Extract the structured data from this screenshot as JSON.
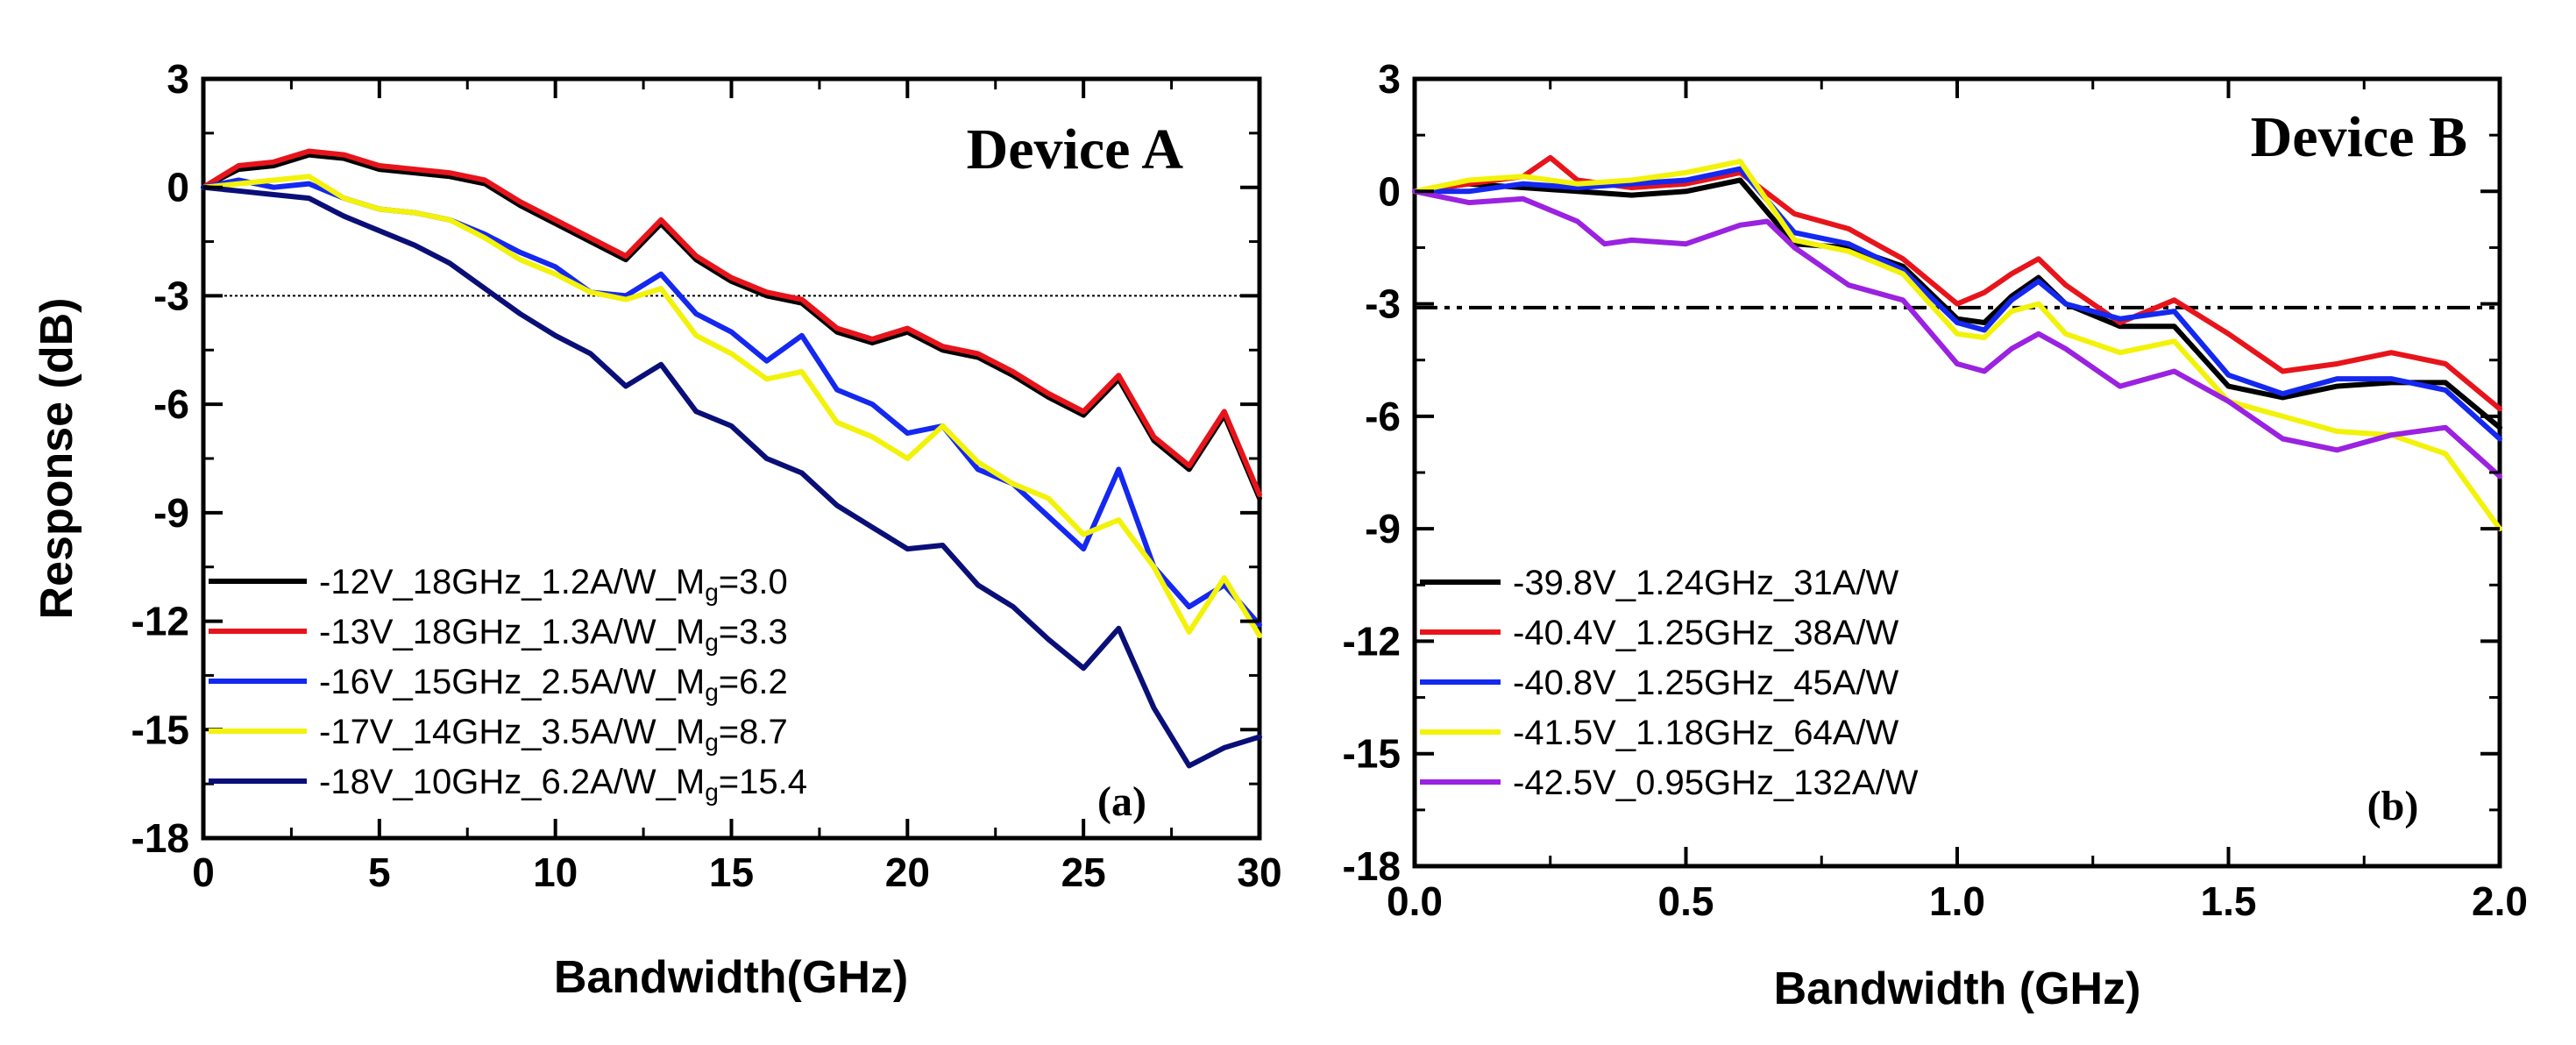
{
  "chart_data": [
    {
      "type": "line",
      "panel": "(a)",
      "title": "Device A",
      "xlabel": "Bandwidth(GHz)",
      "ylabel": "Response (dB)",
      "xlim": [
        0,
        30
      ],
      "ylim": [
        -18,
        3
      ],
      "xticks": [
        0,
        5,
        10,
        15,
        20,
        25,
        30
      ],
      "yticks": [
        3,
        0,
        -3,
        -6,
        -9,
        -12,
        -15,
        -18
      ],
      "reference_line": {
        "y": -3,
        "style": "dotted"
      },
      "legend_position": "bottom-left",
      "series": [
        {
          "name": "-12V_18GHz_1.2A/W_M",
          "name_sub": "g",
          "name_suffix": "=3.0",
          "color": "#000000",
          "x": [
            0,
            1,
            2,
            3,
            4,
            5,
            6,
            7,
            8,
            9,
            10,
            11,
            12,
            13,
            14,
            15,
            16,
            17,
            18,
            19,
            20,
            21,
            22,
            23,
            24,
            25,
            26,
            27,
            28,
            29,
            30
          ],
          "y": [
            0,
            0.5,
            0.6,
            0.9,
            0.8,
            0.5,
            0.4,
            0.3,
            0.1,
            -0.5,
            -1.0,
            -1.5,
            -2.0,
            -1.0,
            -2.0,
            -2.6,
            -3.0,
            -3.2,
            -4.0,
            -4.3,
            -4.0,
            -4.5,
            -4.7,
            -5.2,
            -5.8,
            -6.3,
            -5.3,
            -7.0,
            -7.8,
            -6.3,
            -8.6
          ]
        },
        {
          "name": "-13V_18GHz_1.3A/W_M",
          "name_sub": "g",
          "name_suffix": "=3.3",
          "color": "#e8141b",
          "x": [
            0,
            1,
            2,
            3,
            4,
            5,
            6,
            7,
            8,
            9,
            10,
            11,
            12,
            13,
            14,
            15,
            16,
            17,
            18,
            19,
            20,
            21,
            22,
            23,
            24,
            25,
            26,
            27,
            28,
            29,
            30
          ],
          "y": [
            0,
            0.6,
            0.7,
            1.0,
            0.9,
            0.6,
            0.5,
            0.4,
            0.2,
            -0.4,
            -0.9,
            -1.4,
            -1.9,
            -0.9,
            -1.9,
            -2.5,
            -2.9,
            -3.1,
            -3.9,
            -4.2,
            -3.9,
            -4.4,
            -4.6,
            -5.1,
            -5.7,
            -6.2,
            -5.2,
            -6.9,
            -7.7,
            -6.2,
            -8.5
          ]
        },
        {
          "name": "-16V_15GHz_2.5A/W_M",
          "name_sub": "g",
          "name_suffix": "=6.2",
          "color": "#1428f0",
          "x": [
            0,
            1,
            2,
            3,
            4,
            5,
            6,
            7,
            8,
            9,
            10,
            11,
            12,
            13,
            14,
            15,
            16,
            17,
            18,
            19,
            20,
            21,
            22,
            23,
            24,
            25,
            26,
            27,
            28,
            29,
            30
          ],
          "y": [
            0,
            0.2,
            0,
            0.1,
            -0.3,
            -0.6,
            -0.7,
            -0.9,
            -1.3,
            -1.8,
            -2.2,
            -2.9,
            -3.0,
            -2.4,
            -3.5,
            -4.0,
            -4.8,
            -4.1,
            -5.6,
            -6.0,
            -6.8,
            -6.6,
            -7.8,
            -8.2,
            -9.1,
            -10.0,
            -7.8,
            -10.5,
            -11.6,
            -11.0,
            -12.1
          ]
        },
        {
          "name": "-17V_14GHz_3.5A/W_M",
          "name_sub": "g",
          "name_suffix": "=8.7",
          "color": "#f2f20a",
          "x": [
            0,
            1,
            2,
            3,
            4,
            5,
            6,
            7,
            8,
            9,
            10,
            11,
            12,
            13,
            14,
            15,
            16,
            17,
            18,
            19,
            20,
            21,
            22,
            23,
            24,
            25,
            26,
            27,
            28,
            29,
            30
          ],
          "y": [
            0,
            0.1,
            0.2,
            0.3,
            -0.3,
            -0.6,
            -0.7,
            -0.9,
            -1.4,
            -2.0,
            -2.4,
            -2.9,
            -3.1,
            -2.8,
            -4.1,
            -4.6,
            -5.3,
            -5.1,
            -6.5,
            -6.9,
            -7.5,
            -6.6,
            -7.6,
            -8.2,
            -8.6,
            -9.6,
            -9.2,
            -10.5,
            -12.3,
            -10.8,
            -12.4
          ]
        },
        {
          "name": "-18V_10GHz_6.2A/W_M",
          "name_sub": "g",
          "name_suffix": "=15.4",
          "color": "#0a0f78",
          "x": [
            0,
            1,
            2,
            3,
            4,
            5,
            6,
            7,
            8,
            9,
            10,
            11,
            12,
            13,
            14,
            15,
            16,
            17,
            18,
            19,
            20,
            21,
            22,
            23,
            24,
            25,
            26,
            27,
            28,
            29,
            30
          ],
          "y": [
            0,
            -0.1,
            -0.2,
            -0.3,
            -0.8,
            -1.2,
            -1.6,
            -2.1,
            -2.8,
            -3.5,
            -4.1,
            -4.6,
            -5.5,
            -4.9,
            -6.2,
            -6.6,
            -7.5,
            -7.9,
            -8.8,
            -9.4,
            -10.0,
            -9.9,
            -11.0,
            -11.6,
            -12.5,
            -13.3,
            -12.2,
            -14.4,
            -16.0,
            -15.5,
            -15.2
          ]
        }
      ]
    },
    {
      "type": "line",
      "panel": "(b)",
      "title": "Device B",
      "xlabel": "Bandwidth (GHz)",
      "ylabel": "",
      "xlim": [
        0,
        2.0
      ],
      "ylim": [
        -18,
        3
      ],
      "xticks": [
        0.0,
        0.5,
        1.0,
        1.5,
        2.0
      ],
      "yticks": [
        3,
        0,
        -3,
        -6,
        -9,
        -12,
        -15,
        -18
      ],
      "reference_line": {
        "y": -3.1,
        "style": "dash-dot"
      },
      "legend_position": "bottom-left",
      "series": [
        {
          "name": "-39.8V_1.24GHz_31A/W",
          "color": "#000000",
          "x": [
            0,
            0.1,
            0.2,
            0.3,
            0.4,
            0.5,
            0.6,
            0.7,
            0.8,
            0.9,
            1.0,
            1.05,
            1.1,
            1.15,
            1.2,
            1.3,
            1.4,
            1.5,
            1.6,
            1.7,
            1.8,
            1.9,
            2.0
          ],
          "y": [
            0,
            0.2,
            0.1,
            0,
            -0.1,
            0,
            0.3,
            -1.4,
            -1.5,
            -2.0,
            -3.4,
            -3.5,
            -2.8,
            -2.3,
            -3.0,
            -3.6,
            -3.6,
            -5.2,
            -5.5,
            -5.2,
            -5.1,
            -5.1,
            -6.3
          ]
        },
        {
          "name": "-40.4V_1.25GHz_38A/W",
          "color": "#e8141b",
          "x": [
            0,
            0.1,
            0.2,
            0.25,
            0.3,
            0.4,
            0.5,
            0.6,
            0.7,
            0.8,
            0.9,
            1.0,
            1.05,
            1.1,
            1.15,
            1.2,
            1.3,
            1.4,
            1.5,
            1.6,
            1.7,
            1.8,
            1.9,
            2.0
          ],
          "y": [
            0,
            0.2,
            0.4,
            0.9,
            0.3,
            0.1,
            0.2,
            0.5,
            -0.6,
            -1.0,
            -1.8,
            -3.0,
            -2.7,
            -2.2,
            -1.8,
            -2.5,
            -3.5,
            -2.9,
            -3.8,
            -4.8,
            -4.6,
            -4.3,
            -4.6,
            -5.8
          ]
        },
        {
          "name": "-40.8V_1.25GHz_45A/W",
          "color": "#1428f0",
          "x": [
            0,
            0.1,
            0.2,
            0.3,
            0.4,
            0.5,
            0.6,
            0.7,
            0.8,
            0.9,
            1.0,
            1.05,
            1.1,
            1.15,
            1.2,
            1.3,
            1.4,
            1.5,
            1.6,
            1.7,
            1.8,
            1.9,
            2.0
          ],
          "y": [
            0,
            0,
            0.2,
            0.1,
            0.2,
            0.3,
            0.6,
            -1.1,
            -1.4,
            -2.1,
            -3.5,
            -3.7,
            -2.9,
            -2.4,
            -3.0,
            -3.4,
            -3.2,
            -4.9,
            -5.4,
            -5.0,
            -5.0,
            -5.3,
            -6.6
          ]
        },
        {
          "name": "-41.5V_1.18GHz_64A/W",
          "color": "#f2f20a",
          "x": [
            0,
            0.1,
            0.2,
            0.3,
            0.4,
            0.5,
            0.6,
            0.7,
            0.8,
            0.9,
            1.0,
            1.05,
            1.1,
            1.15,
            1.2,
            1.3,
            1.4,
            1.5,
            1.6,
            1.7,
            1.8,
            1.9,
            2.0
          ],
          "y": [
            0,
            0.3,
            0.4,
            0.2,
            0.3,
            0.5,
            0.8,
            -1.3,
            -1.6,
            -2.2,
            -3.8,
            -3.9,
            -3.2,
            -3.0,
            -3.8,
            -4.3,
            -4.0,
            -5.6,
            -6.0,
            -6.4,
            -6.5,
            -7.0,
            -9.0
          ]
        },
        {
          "name": "-42.5V_0.95GHz_132A/W",
          "color": "#9a22e0",
          "x": [
            0,
            0.1,
            0.2,
            0.3,
            0.35,
            0.4,
            0.5,
            0.6,
            0.65,
            0.7,
            0.8,
            0.9,
            1.0,
            1.05,
            1.1,
            1.15,
            1.2,
            1.3,
            1.4,
            1.5,
            1.6,
            1.7,
            1.8,
            1.9,
            2.0
          ],
          "y": [
            0,
            -0.3,
            -0.2,
            -0.8,
            -1.4,
            -1.3,
            -1.4,
            -0.9,
            -0.8,
            -1.5,
            -2.5,
            -2.9,
            -4.6,
            -4.8,
            -4.2,
            -3.8,
            -4.2,
            -5.2,
            -4.8,
            -5.6,
            -6.6,
            -6.9,
            -6.5,
            -6.3,
            -7.6
          ]
        }
      ]
    }
  ]
}
